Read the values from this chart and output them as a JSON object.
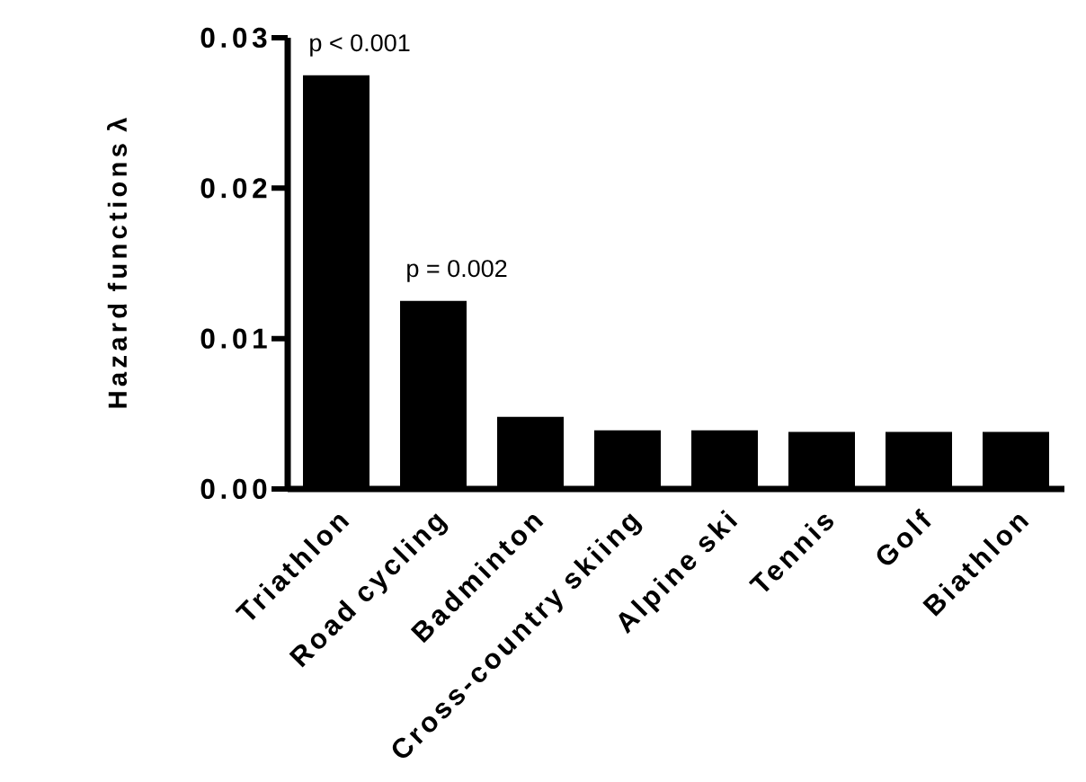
{
  "chart_data": {
    "type": "bar",
    "ylabel": "Hazard functions λ",
    "categories": [
      "Triathlon",
      "Road cycling",
      "Badminton",
      "Cross-country skiing",
      "Alpine ski",
      "Tennis",
      "Golf",
      "Biathlon"
    ],
    "values": [
      0.0275,
      0.0125,
      0.0048,
      0.0039,
      0.0039,
      0.0038,
      0.0038,
      0.0038
    ],
    "color": "#000000",
    "ylim": [
      0,
      0.03
    ],
    "yticks": [
      {
        "value": 0,
        "label": "0.00"
      },
      0.01,
      0.02,
      0.03
    ],
    "annotations": [
      {
        "text": "p < 0.001",
        "x": "Triathlon",
        "y": 0.0275
      },
      {
        "text": "p = 0.002",
        "x": "Road cycling",
        "y": 0.0125
      }
    ]
  }
}
